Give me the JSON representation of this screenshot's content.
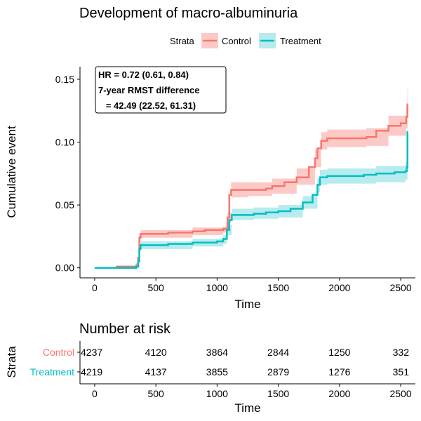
{
  "chart_data": [
    {
      "type": "line",
      "title": "Development of macro-albuminuria",
      "xlabel": "Time",
      "ylabel": "Cumulative event",
      "xlim": [
        -120,
        2620
      ],
      "ylim": [
        -0.008,
        0.16
      ],
      "xticks": [
        0,
        500,
        1000,
        1500,
        2000,
        2500
      ],
      "yticks": [
        0.0,
        0.05,
        0.1,
        0.15
      ],
      "ytick_labels": [
        "0.00",
        "0.05",
        "0.10",
        "0.15"
      ],
      "grid": false,
      "legend": {
        "position": "top",
        "title": "Strata",
        "entries": [
          "Control",
          "Treatment"
        ]
      },
      "annotation": {
        "lines": [
          "HR = 0.72 (0.61, 0.84)",
          "7-year RMST difference",
          "   = 42.49 (22.52, 61.31)"
        ]
      },
      "series": [
        {
          "name": "Control",
          "color": "#F8766D",
          "fill": "#FBB4AE",
          "steps": [
            [
              0,
              0.0
            ],
            [
              180,
              0.001
            ],
            [
              340,
              0.002
            ],
            [
              355,
              0.008
            ],
            [
              365,
              0.024
            ],
            [
              375,
              0.027
            ],
            [
              600,
              0.028
            ],
            [
              800,
              0.029
            ],
            [
              900,
              0.03
            ],
            [
              1050,
              0.031
            ],
            [
              1085,
              0.04
            ],
            [
              1100,
              0.058
            ],
            [
              1115,
              0.062
            ],
            [
              1250,
              0.062
            ],
            [
              1400,
              0.063
            ],
            [
              1450,
              0.065
            ],
            [
              1550,
              0.068
            ],
            [
              1650,
              0.072
            ],
            [
              1750,
              0.08
            ],
            [
              1800,
              0.087
            ],
            [
              1820,
              0.095
            ],
            [
              1850,
              0.101
            ],
            [
              1900,
              0.103
            ],
            [
              2000,
              0.103
            ],
            [
              2220,
              0.104
            ],
            [
              2300,
              0.109
            ],
            [
              2400,
              0.113
            ],
            [
              2500,
              0.115
            ],
            [
              2545,
              0.12
            ],
            [
              2555,
              0.13
            ],
            [
              2560,
              0.13
            ]
          ],
          "lower": [
            [
              0,
              0.0
            ],
            [
              340,
              0.0
            ],
            [
              365,
              0.021
            ],
            [
              375,
              0.024
            ],
            [
              800,
              0.026
            ],
            [
              1050,
              0.028
            ],
            [
              1085,
              0.036
            ],
            [
              1115,
              0.056
            ],
            [
              1250,
              0.057
            ],
            [
              1450,
              0.059
            ],
            [
              1650,
              0.066
            ],
            [
              1800,
              0.08
            ],
            [
              1850,
              0.094
            ],
            [
              1900,
              0.096
            ],
            [
              2220,
              0.097
            ],
            [
              2400,
              0.105
            ],
            [
              2545,
              0.111
            ],
            [
              2555,
              0.12
            ],
            [
              2560,
              0.12
            ]
          ],
          "upper": [
            [
              0,
              0.0
            ],
            [
              340,
              0.004
            ],
            [
              365,
              0.027
            ],
            [
              375,
              0.03
            ],
            [
              800,
              0.032
            ],
            [
              1050,
              0.033
            ],
            [
              1085,
              0.044
            ],
            [
              1115,
              0.068
            ],
            [
              1250,
              0.068
            ],
            [
              1450,
              0.071
            ],
            [
              1650,
              0.079
            ],
            [
              1800,
              0.094
            ],
            [
              1850,
              0.108
            ],
            [
              1900,
              0.11
            ],
            [
              2220,
              0.111
            ],
            [
              2400,
              0.121
            ],
            [
              2545,
              0.129
            ],
            [
              2555,
              0.142
            ],
            [
              2560,
              0.142
            ]
          ]
        },
        {
          "name": "Treatment",
          "color": "#00BFC4",
          "fill": "#99E3E6",
          "steps": [
            [
              0,
              0.0
            ],
            [
              300,
              0.0
            ],
            [
              340,
              0.001
            ],
            [
              355,
              0.005
            ],
            [
              365,
              0.015
            ],
            [
              375,
              0.018
            ],
            [
              600,
              0.019
            ],
            [
              800,
              0.02
            ],
            [
              1000,
              0.021
            ],
            [
              1050,
              0.023
            ],
            [
              1080,
              0.03
            ],
            [
              1100,
              0.038
            ],
            [
              1120,
              0.042
            ],
            [
              1300,
              0.043
            ],
            [
              1400,
              0.044
            ],
            [
              1500,
              0.045
            ],
            [
              1600,
              0.047
            ],
            [
              1700,
              0.052
            ],
            [
              1780,
              0.058
            ],
            [
              1820,
              0.066
            ],
            [
              1840,
              0.072
            ],
            [
              1900,
              0.073
            ],
            [
              2200,
              0.074
            ],
            [
              2300,
              0.075
            ],
            [
              2450,
              0.076
            ],
            [
              2540,
              0.077
            ],
            [
              2550,
              0.08
            ],
            [
              2555,
              0.108
            ],
            [
              2560,
              0.108
            ]
          ],
          "lower": [
            [
              0,
              0.0
            ],
            [
              340,
              0.0
            ],
            [
              365,
              0.013
            ],
            [
              375,
              0.015
            ],
            [
              800,
              0.017
            ],
            [
              1050,
              0.019
            ],
            [
              1080,
              0.026
            ],
            [
              1120,
              0.038
            ],
            [
              1300,
              0.039
            ],
            [
              1500,
              0.04
            ],
            [
              1700,
              0.047
            ],
            [
              1820,
              0.06
            ],
            [
              1840,
              0.066
            ],
            [
              1900,
              0.067
            ],
            [
              2300,
              0.068
            ],
            [
              2540,
              0.07
            ],
            [
              2555,
              0.094
            ],
            [
              2560,
              0.094
            ]
          ],
          "upper": [
            [
              0,
              0.0
            ],
            [
              340,
              0.002
            ],
            [
              365,
              0.019
            ],
            [
              375,
              0.021
            ],
            [
              800,
              0.023
            ],
            [
              1050,
              0.026
            ],
            [
              1080,
              0.034
            ],
            [
              1120,
              0.047
            ],
            [
              1300,
              0.048
            ],
            [
              1500,
              0.05
            ],
            [
              1700,
              0.057
            ],
            [
              1820,
              0.071
            ],
            [
              1840,
              0.078
            ],
            [
              1900,
              0.079
            ],
            [
              2300,
              0.081
            ],
            [
              2540,
              0.084
            ],
            [
              2555,
              0.118
            ],
            [
              2560,
              0.118
            ]
          ]
        }
      ]
    },
    {
      "type": "table",
      "title": "Number at risk",
      "xlabel": "Time",
      "ylabel": "Strata",
      "xlim": [
        -120,
        2620
      ],
      "xticks": [
        0,
        500,
        1000,
        1500,
        2000,
        2500
      ],
      "columns": [
        0,
        500,
        1000,
        1500,
        2000,
        2500
      ],
      "rows": [
        {
          "name": "Control",
          "color": "#F8766D",
          "values": [
            "4237",
            "4120",
            "3864",
            "2844",
            "1250",
            "332"
          ]
        },
        {
          "name": "Treatment",
          "color": "#00BFC4",
          "values": [
            "4219",
            "4137",
            "3855",
            "2879",
            "1276",
            "351"
          ]
        }
      ]
    }
  ]
}
